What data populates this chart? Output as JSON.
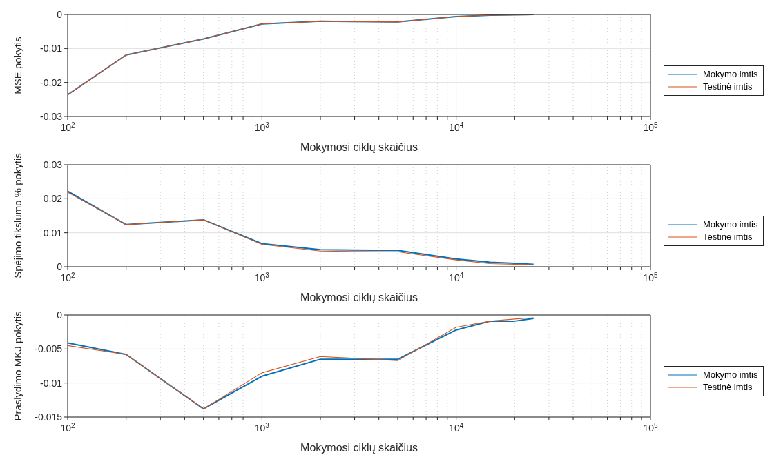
{
  "chart_data": [
    {
      "type": "line",
      "xlabel": "Mokymosi ciklų skaičius",
      "ylabel": "MSE pokytis",
      "x": [
        100,
        200,
        500,
        1000,
        2000,
        5000,
        10000,
        15000,
        20000,
        25000
      ],
      "series": [
        {
          "name": "Mokymo imtis",
          "color": "#0072bd",
          "values": [
            -0.0236,
            -0.0119,
            -0.0072,
            -0.0028,
            -0.002,
            -0.0022,
            -0.0006,
            -0.0002,
            -0.0001,
            0
          ]
        },
        {
          "name": "Testinė imtis",
          "color": "#d95319",
          "values": [
            -0.0236,
            -0.0119,
            -0.0072,
            -0.0028,
            -0.002,
            -0.0022,
            -0.0006,
            -0.0002,
            -0.0001,
            0
          ]
        }
      ],
      "log": "x",
      "xlim": [
        100,
        100000
      ],
      "xticks": [
        {
          "value": 100,
          "label": "10$^{2}$"
        },
        {
          "value": 200,
          "label": null
        },
        {
          "value": 300,
          "label": null
        },
        {
          "value": 400,
          "label": null
        },
        {
          "value": 500,
          "label": null
        },
        {
          "value": 600,
          "label": null
        },
        {
          "value": 700,
          "label": null
        },
        {
          "value": 800,
          "label": null
        },
        {
          "value": 900,
          "label": null
        },
        {
          "value": 1000,
          "label": "10$^{3}$"
        },
        {
          "value": 2000,
          "label": null
        },
        {
          "value": 3000,
          "label": null
        },
        {
          "value": 4000,
          "label": null
        },
        {
          "value": 5000,
          "label": null
        },
        {
          "value": 6000,
          "label": null
        },
        {
          "value": 7000,
          "label": null
        },
        {
          "value": 8000,
          "label": null
        },
        {
          "value": 9000,
          "label": null
        },
        {
          "value": 10000,
          "label": "10$^{4}$"
        },
        {
          "value": 20000,
          "label": null
        },
        {
          "value": 30000,
          "label": null
        },
        {
          "value": 40000,
          "label": null
        },
        {
          "value": 50000,
          "label": null
        },
        {
          "value": 60000,
          "label": null
        },
        {
          "value": 70000,
          "label": null
        },
        {
          "value": 80000,
          "label": null
        },
        {
          "value": 90000,
          "label": null
        },
        {
          "value": 100000,
          "label": "10$^{5}$"
        }
      ],
      "ylim": [
        -0.03,
        0
      ],
      "yticks": [
        -0.03,
        -0.02,
        -0.01,
        0
      ],
      "grid": true,
      "legend": "right",
      "marker": "none",
      "line_style": "solid"
    },
    {
      "type": "line",
      "xlabel": "Mokymosi ciklų skaičius",
      "ylabel": "Spėjimo tikslumo % pokytis",
      "x": [
        100,
        200,
        500,
        1000,
        2000,
        5000,
        10000,
        15000,
        20000,
        25000
      ],
      "series": [
        {
          "name": "Mokymo imtis",
          "color": "#0072bd",
          "values": [
            0.0222,
            0.0124,
            0.0138,
            0.0068,
            0.005,
            0.0048,
            0.0023,
            0.0013,
            0.001,
            0.0007
          ]
        },
        {
          "name": "Testinė imtis",
          "color": "#d95319",
          "values": [
            0.0219,
            0.0124,
            0.0138,
            0.0066,
            0.0046,
            0.0044,
            0.002,
            0.0009,
            0.0007,
            0.0006
          ]
        }
      ],
      "log": "x",
      "xlim": [
        100,
        100000
      ],
      "xticks": [
        {
          "value": 100,
          "label": "10$^{2}$"
        },
        {
          "value": 200,
          "label": null
        },
        {
          "value": 300,
          "label": null
        },
        {
          "value": 400,
          "label": null
        },
        {
          "value": 500,
          "label": null
        },
        {
          "value": 600,
          "label": null
        },
        {
          "value": 700,
          "label": null
        },
        {
          "value": 800,
          "label": null
        },
        {
          "value": 900,
          "label": null
        },
        {
          "value": 1000,
          "label": "10$^{3}$"
        },
        {
          "value": 2000,
          "label": null
        },
        {
          "value": 3000,
          "label": null
        },
        {
          "value": 4000,
          "label": null
        },
        {
          "value": 5000,
          "label": null
        },
        {
          "value": 6000,
          "label": null
        },
        {
          "value": 7000,
          "label": null
        },
        {
          "value": 8000,
          "label": null
        },
        {
          "value": 9000,
          "label": null
        },
        {
          "value": 10000,
          "label": "10$^{4}$"
        },
        {
          "value": 20000,
          "label": null
        },
        {
          "value": 30000,
          "label": null
        },
        {
          "value": 40000,
          "label": null
        },
        {
          "value": 50000,
          "label": null
        },
        {
          "value": 60000,
          "label": null
        },
        {
          "value": 70000,
          "label": null
        },
        {
          "value": 80000,
          "label": null
        },
        {
          "value": 90000,
          "label": null
        },
        {
          "value": 100000,
          "label": "10$^{5}$"
        }
      ],
      "ylim": [
        0,
        0.03
      ],
      "yticks": [
        0,
        0.01,
        0.02,
        0.03
      ],
      "grid": true,
      "legend": "right",
      "marker": "none",
      "line_style": "solid"
    },
    {
      "type": "line",
      "xlabel": "Mokymosi ciklų skaičius",
      "ylabel": "Praslydimo MKJ pokytis",
      "x": [
        100,
        200,
        500,
        1000,
        2000,
        5000,
        10000,
        15000,
        20000,
        25000
      ],
      "series": [
        {
          "name": "Mokymo imtis",
          "color": "#0072bd",
          "values": [
            -0.0041,
            -0.0058,
            -0.0138,
            -0.009,
            -0.0065,
            -0.0065,
            -0.0022,
            -0.0009,
            -0.0009,
            -0.0005
          ]
        },
        {
          "name": "Testinė imtis",
          "color": "#d95319",
          "values": [
            -0.0045,
            -0.0058,
            -0.0138,
            -0.0085,
            -0.0061,
            -0.0067,
            -0.0018,
            -0.0009,
            -0.0006,
            -0.0004
          ]
        }
      ],
      "log": "x",
      "xlim": [
        100,
        100000
      ],
      "xticks": [
        {
          "value": 100,
          "label": "10$^{2}$"
        },
        {
          "value": 200,
          "label": null
        },
        {
          "value": 300,
          "label": null
        },
        {
          "value": 400,
          "label": null
        },
        {
          "value": 500,
          "label": null
        },
        {
          "value": 600,
          "label": null
        },
        {
          "value": 700,
          "label": null
        },
        {
          "value": 800,
          "label": null
        },
        {
          "value": 900,
          "label": null
        },
        {
          "value": 1000,
          "label": "10$^{3}$"
        },
        {
          "value": 2000,
          "label": null
        },
        {
          "value": 3000,
          "label": null
        },
        {
          "value": 4000,
          "label": null
        },
        {
          "value": 5000,
          "label": null
        },
        {
          "value": 6000,
          "label": null
        },
        {
          "value": 7000,
          "label": null
        },
        {
          "value": 8000,
          "label": null
        },
        {
          "value": 9000,
          "label": null
        },
        {
          "value": 10000,
          "label": "10$^{4}$"
        },
        {
          "value": 20000,
          "label": null
        },
        {
          "value": 30000,
          "label": null
        },
        {
          "value": 40000,
          "label": null
        },
        {
          "value": 50000,
          "label": null
        },
        {
          "value": 60000,
          "label": null
        },
        {
          "value": 70000,
          "label": null
        },
        {
          "value": 80000,
          "label": null
        },
        {
          "value": 90000,
          "label": null
        },
        {
          "value": 100000,
          "label": "10$^{5}$"
        }
      ],
      "ylim": [
        -0.015,
        0
      ],
      "yticks": [
        -0.015,
        -0.01,
        -0.005,
        0
      ],
      "grid": true,
      "legend": "right",
      "marker": "none",
      "line_style": "solid"
    }
  ]
}
